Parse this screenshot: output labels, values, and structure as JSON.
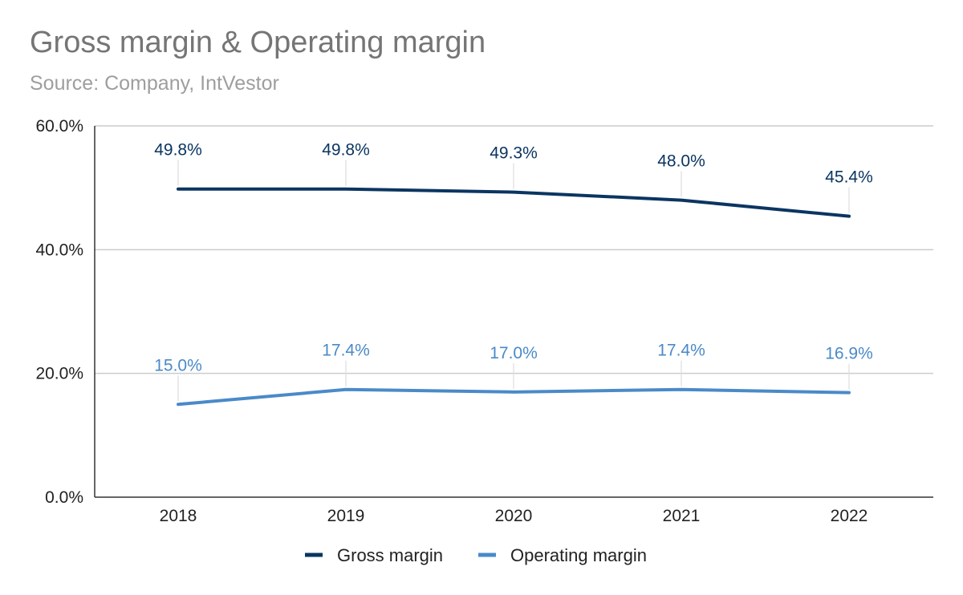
{
  "chart_data": {
    "type": "line",
    "title": "Gross margin & Operating margin",
    "subtitle": "Source: Company, IntVestor",
    "categories": [
      "2018",
      "2019",
      "2020",
      "2021",
      "2022"
    ],
    "series": [
      {
        "name": "Gross margin",
        "values": [
          49.8,
          49.8,
          49.3,
          48.0,
          45.4
        ],
        "labels": [
          "49.8%",
          "49.8%",
          "49.3%",
          "48.0%",
          "45.4%"
        ],
        "color": "#0b3561"
      },
      {
        "name": "Operating margin",
        "values": [
          15.0,
          17.4,
          17.0,
          17.4,
          16.9
        ],
        "labels": [
          "15.0%",
          "17.4%",
          "17.0%",
          "17.4%",
          "16.9%"
        ],
        "color": "#4a8ac8"
      }
    ],
    "yticks": [
      "0.0%",
      "20.0%",
      "40.0%",
      "60.0%"
    ],
    "ytick_values": [
      0,
      20,
      40,
      60
    ],
    "ylim": [
      0,
      60
    ],
    "xlabel": "",
    "ylabel": "",
    "grid": true,
    "legend_position": "bottom"
  }
}
